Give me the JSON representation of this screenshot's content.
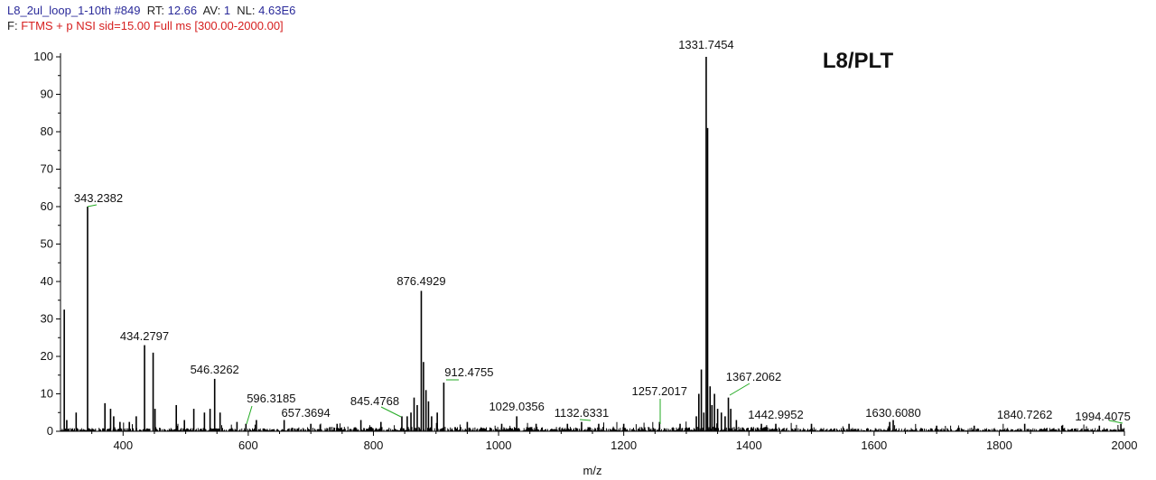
{
  "header": {
    "line1": {
      "filename": "L8_2ul_loop_1-10th",
      "scan": "#849",
      "rt_label": "RT:",
      "rt_value": "12.66",
      "av_label": "AV:",
      "av_value": "1",
      "nl_label": "NL:",
      "nl_value": "4.63E6"
    },
    "line2": {
      "filter_label": "F:",
      "filter_value": "FTMS + p NSI sid=15.00  Full ms [300.00-2000.00]"
    }
  },
  "chart_data": {
    "type": "line",
    "title": "L8/PLT",
    "xlabel": "m/z",
    "ylabel": "",
    "xlim": [
      300,
      2000
    ],
    "ylim": [
      0,
      100
    ],
    "xticks": [
      400,
      600,
      800,
      1000,
      1200,
      1400,
      1600,
      1800,
      2000
    ],
    "yticks": [
      0,
      10,
      20,
      30,
      40,
      50,
      60,
      70,
      80,
      90,
      100
    ],
    "grid": false,
    "colors": {
      "spectrum": "#000000",
      "label_line": "#22aa22",
      "filename": "#2a2a9a",
      "filter": "#d62020"
    },
    "labeled_peaks": [
      {
        "mz": 343.2382,
        "intensity": 60,
        "label": "343.2382"
      },
      {
        "mz": 434.2797,
        "intensity": 23,
        "label": "434.2797"
      },
      {
        "mz": 546.3262,
        "intensity": 14,
        "label": "546.3262"
      },
      {
        "mz": 596.3185,
        "intensity": 2,
        "label": "596.3185"
      },
      {
        "mz": 657.3694,
        "intensity": 3,
        "label": "657.3694"
      },
      {
        "mz": 845.4768,
        "intensity": 4,
        "label": "845.4768"
      },
      {
        "mz": 876.4929,
        "intensity": 37.5,
        "label": "876.4929"
      },
      {
        "mz": 912.4755,
        "intensity": 13,
        "label": "912.4755"
      },
      {
        "mz": 1029.0356,
        "intensity": 4,
        "label": "1029.0356"
      },
      {
        "mz": 1132.6331,
        "intensity": 2.5,
        "label": "1132.6331"
      },
      {
        "mz": 1257.2017,
        "intensity": 2.5,
        "label": "1257.2017"
      },
      {
        "mz": 1331.7454,
        "intensity": 100,
        "label": "1331.7454"
      },
      {
        "mz": 1367.2062,
        "intensity": 9,
        "label": "1367.2062"
      },
      {
        "mz": 1442.9952,
        "intensity": 2,
        "label": "1442.9952"
      },
      {
        "mz": 1630.608,
        "intensity": 3,
        "label": "1630.6080"
      },
      {
        "mz": 1840.7262,
        "intensity": 2,
        "label": "1840.7262"
      },
      {
        "mz": 1994.4075,
        "intensity": 2,
        "label": "1994.4075"
      }
    ],
    "other_peaks": [
      {
        "mz": 306,
        "intensity": 32.5
      },
      {
        "mz": 310,
        "intensity": 3
      },
      {
        "mz": 325,
        "intensity": 5
      },
      {
        "mz": 371,
        "intensity": 7.5
      },
      {
        "mz": 380,
        "intensity": 6
      },
      {
        "mz": 385,
        "intensity": 4
      },
      {
        "mz": 395,
        "intensity": 2.5
      },
      {
        "mz": 410,
        "intensity": 2.5
      },
      {
        "mz": 421,
        "intensity": 4
      },
      {
        "mz": 448,
        "intensity": 21
      },
      {
        "mz": 451,
        "intensity": 6
      },
      {
        "mz": 485,
        "intensity": 7
      },
      {
        "mz": 498,
        "intensity": 3
      },
      {
        "mz": 513,
        "intensity": 6
      },
      {
        "mz": 530,
        "intensity": 5
      },
      {
        "mz": 539,
        "intensity": 6
      },
      {
        "mz": 555,
        "intensity": 5
      },
      {
        "mz": 582,
        "intensity": 2.5
      },
      {
        "mz": 613,
        "intensity": 3
      },
      {
        "mz": 700,
        "intensity": 2
      },
      {
        "mz": 742,
        "intensity": 2
      },
      {
        "mz": 780,
        "intensity": 3
      },
      {
        "mz": 812,
        "intensity": 2.5
      },
      {
        "mz": 854,
        "intensity": 4
      },
      {
        "mz": 860,
        "intensity": 5
      },
      {
        "mz": 865,
        "intensity": 9
      },
      {
        "mz": 870,
        "intensity": 7
      },
      {
        "mz": 880,
        "intensity": 18.5
      },
      {
        "mz": 884,
        "intensity": 11
      },
      {
        "mz": 888,
        "intensity": 8
      },
      {
        "mz": 893,
        "intensity": 4
      },
      {
        "mz": 902,
        "intensity": 5
      },
      {
        "mz": 950,
        "intensity": 2.5
      },
      {
        "mz": 1005,
        "intensity": 2
      },
      {
        "mz": 1060,
        "intensity": 2
      },
      {
        "mz": 1110,
        "intensity": 2
      },
      {
        "mz": 1160,
        "intensity": 2
      },
      {
        "mz": 1200,
        "intensity": 2
      },
      {
        "mz": 1290,
        "intensity": 2
      },
      {
        "mz": 1316,
        "intensity": 4
      },
      {
        "mz": 1320,
        "intensity": 10
      },
      {
        "mz": 1324,
        "intensity": 16.5
      },
      {
        "mz": 1328,
        "intensity": 5
      },
      {
        "mz": 1334,
        "intensity": 81
      },
      {
        "mz": 1338,
        "intensity": 12
      },
      {
        "mz": 1341,
        "intensity": 7
      },
      {
        "mz": 1345,
        "intensity": 10
      },
      {
        "mz": 1350,
        "intensity": 6
      },
      {
        "mz": 1356,
        "intensity": 5
      },
      {
        "mz": 1362,
        "intensity": 4
      },
      {
        "mz": 1371,
        "intensity": 6
      },
      {
        "mz": 1380,
        "intensity": 3
      },
      {
        "mz": 1420,
        "intensity": 2
      },
      {
        "mz": 1500,
        "intensity": 2
      },
      {
        "mz": 1560,
        "intensity": 2
      },
      {
        "mz": 1625,
        "intensity": 2.5
      },
      {
        "mz": 1700,
        "intensity": 1.5
      },
      {
        "mz": 1760,
        "intensity": 1.5
      },
      {
        "mz": 1900,
        "intensity": 1.5
      },
      {
        "mz": 1960,
        "intensity": 1.5
      }
    ]
  }
}
